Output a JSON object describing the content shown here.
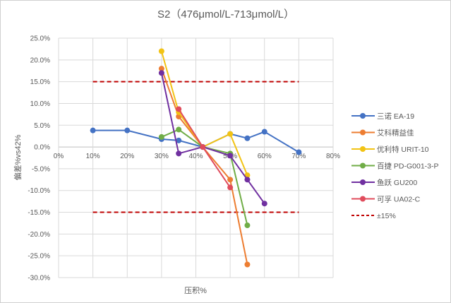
{
  "chart_data": {
    "type": "line",
    "title": "S2（476μmol/L-713μmol/L）",
    "xlabel": "压积%",
    "ylabel": "偏差%vs42%",
    "xlim": [
      0,
      80
    ],
    "ylim": [
      -30,
      25
    ],
    "xticks": [
      "0%",
      "10%",
      "20%",
      "30%",
      "40%",
      "50%",
      "60%",
      "70%",
      "80%"
    ],
    "yticks": [
      "25.0%",
      "20.0%",
      "15.0%",
      "10.0%",
      "5.0%",
      "0.0%",
      "-5.0%",
      "-10.0%",
      "-15.0%",
      "-20.0%",
      "-25.0%",
      "-30.0%"
    ],
    "grid": true,
    "legend_position": "right",
    "series": [
      {
        "name": "三诺 EA-19",
        "color": "#4472C4",
        "points": [
          [
            10,
            3.8
          ],
          [
            20,
            3.8
          ],
          [
            30,
            1.8
          ],
          [
            35,
            1.5
          ],
          [
            42,
            0
          ],
          [
            50,
            3.0
          ],
          [
            55,
            2.0
          ],
          [
            60,
            3.5
          ],
          [
            70,
            -1.2
          ]
        ]
      },
      {
        "name": "艾科精益佳",
        "color": "#ED7D31",
        "points": [
          [
            30,
            18
          ],
          [
            35,
            7
          ],
          [
            42,
            0
          ],
          [
            50,
            -7.5
          ],
          [
            55,
            -27
          ]
        ]
      },
      {
        "name": "优利特 URIT-10",
        "color": "#F2C314",
        "points": [
          [
            30,
            22
          ],
          [
            35,
            8
          ],
          [
            42,
            0
          ],
          [
            50,
            3.0
          ],
          [
            55,
            -6.5
          ]
        ]
      },
      {
        "name": "百捷 PD-G001-3-P",
        "color": "#70AD47",
        "points": [
          [
            30,
            2.3
          ],
          [
            35,
            4
          ],
          [
            42,
            0
          ],
          [
            50,
            -1.5
          ],
          [
            55,
            -18
          ]
        ]
      },
      {
        "name": "鱼跃 GU200",
        "color": "#7030A0",
        "points": [
          [
            30,
            17
          ],
          [
            35,
            -1.5
          ],
          [
            42,
            0
          ],
          [
            50,
            -2
          ],
          [
            55,
            -7.5
          ],
          [
            60,
            -13
          ]
        ]
      },
      {
        "name": "可孚 UA02-C",
        "color": "#E04C5C",
        "points": [
          [
            35,
            8.7
          ],
          [
            42,
            0
          ],
          [
            50,
            -9.3
          ]
        ]
      }
    ],
    "reference_lines": {
      "name": "±15%",
      "color": "#C00000",
      "values": [
        15,
        -15
      ],
      "x_range": [
        10,
        70
      ]
    }
  }
}
